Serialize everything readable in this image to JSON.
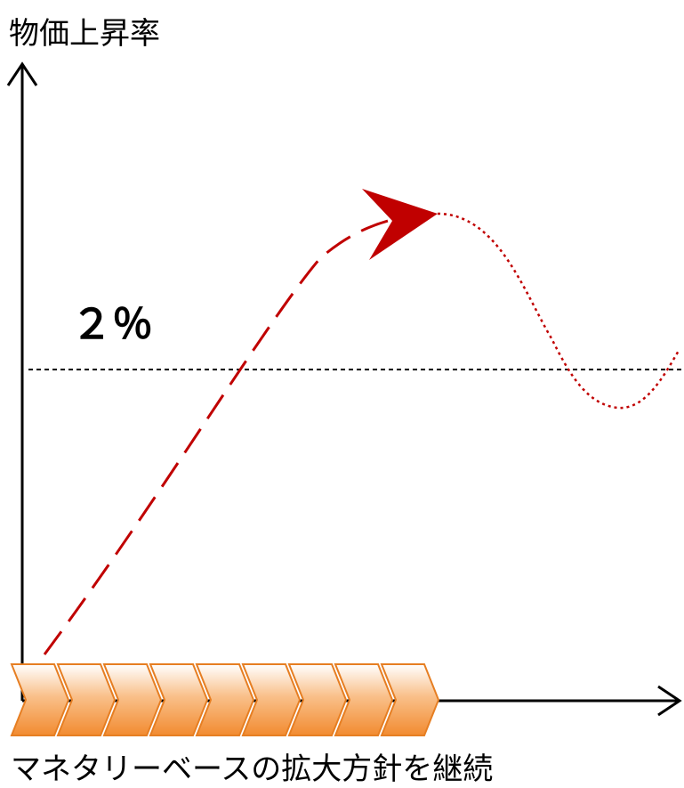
{
  "y_axis": {
    "label": "物価上昇率"
  },
  "x_axis": {
    "label": "マネタリーベースの拡大方針を継続"
  },
  "target": {
    "label": "２％"
  },
  "colors": {
    "axis": "#000000",
    "target_line": "#000000",
    "trend_curve": "#c00000",
    "arrowhead": "#c00000",
    "chevron_fill_top": "#ffffff",
    "chevron_fill_bottom": "#f28b30",
    "chevron_stroke": "#e67e22"
  },
  "chevrons": {
    "count": 9
  }
}
